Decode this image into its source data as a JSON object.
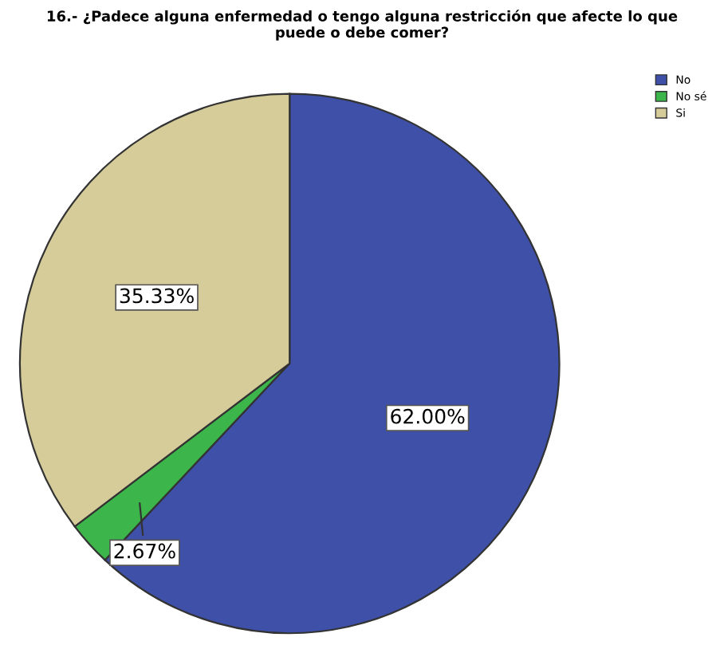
{
  "chart_data": {
    "type": "pie",
    "title": "16.- ¿Padece alguna enfermedad o tengo alguna restricción que afecte lo que\npuede o debe comer?",
    "categories": [
      "No",
      "No sé",
      "Si"
    ],
    "values": [
      62.0,
      2.67,
      35.33
    ],
    "colors": [
      "#3e50a8",
      "#3cb54a",
      "#d6cc9a"
    ],
    "value_labels": [
      "62.00%",
      "2.67%",
      "35.33%"
    ],
    "legend": "top right"
  }
}
